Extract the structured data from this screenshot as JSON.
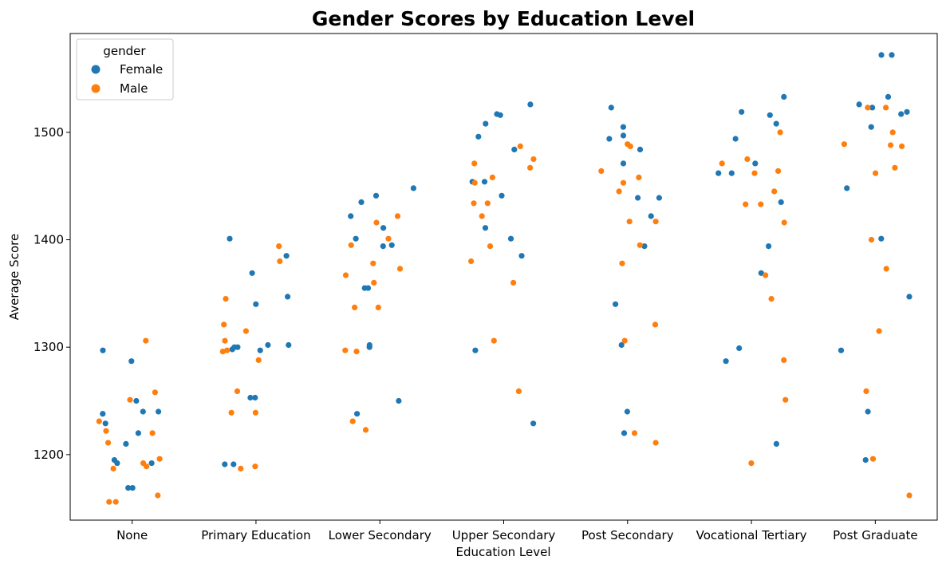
{
  "chart_data": {
    "type": "scatter",
    "title": "Gender Scores by Education Level",
    "xlabel": "Education Level",
    "ylabel": "Average Score",
    "categories": [
      "None",
      "Primary Education",
      "Lower Secondary",
      "Upper Secondary",
      "Post Secondary",
      "Vocational Tertiary",
      "Post Graduate"
    ],
    "ylim": [
      1139,
      1592
    ],
    "yticks": [
      1200,
      1300,
      1400,
      1500
    ],
    "grid": false,
    "legend": {
      "title": "gender",
      "placement": "top-left",
      "entries": [
        "Female",
        "Male"
      ]
    },
    "series": [
      {
        "name": "Female",
        "color": "#1f77b4",
        "values": [
          [
            1287,
            1250,
            1229,
            1195,
            1169,
            1169,
            1297,
            1240,
            1220,
            1210,
            1192,
            1192,
            1240,
            1238
          ],
          [
            1340,
            1300,
            1302,
            1298,
            1297,
            1253,
            1191,
            1191,
            1385,
            1302,
            1401,
            1369,
            1347,
            1300,
            1253
          ],
          [
            1411,
            1395,
            1355,
            1238,
            1448,
            1441,
            1435,
            1394,
            1355,
            1401,
            1250,
            1302,
            1300,
            1422
          ],
          [
            1229,
            1508,
            1526,
            1441,
            1411,
            1401,
            1517,
            1385,
            1484,
            1496,
            1454,
            1516,
            1297,
            1454
          ],
          [
            1302,
            1484,
            1439,
            1439,
            1340,
            1505,
            1240,
            1471,
            1422,
            1220,
            1497,
            1523,
            1494,
            1394
          ],
          [
            1287,
            1494,
            1516,
            1508,
            1533,
            1435,
            1210,
            1394,
            1369,
            1471,
            1462,
            1299,
            1519,
            1462
          ],
          [
            1240,
            1533,
            1572,
            1526,
            1519,
            1297,
            1195,
            1401,
            1505,
            1448,
            1347,
            1523,
            1517,
            1572
          ]
        ]
      },
      {
        "name": "Male",
        "color": "#ff7f0e",
        "values": [
          [
            1251,
            1222,
            1220,
            1196,
            1156,
            1231,
            1211,
            1189,
            1306,
            1192,
            1162,
            1187,
            1258,
            1156
          ],
          [
            1321,
            1297,
            1296,
            1288,
            1394,
            1380,
            1239,
            1239,
            1306,
            1187,
            1189,
            1345,
            1315,
            1259
          ],
          [
            1223,
            1373,
            1337,
            1296,
            1297,
            1401,
            1395,
            1378,
            1231,
            1337,
            1360,
            1367,
            1422,
            1416
          ],
          [
            1487,
            1458,
            1475,
            1259,
            1360,
            1434,
            1306,
            1471,
            1467,
            1453,
            1434,
            1422,
            1394,
            1380
          ],
          [
            1220,
            1453,
            1445,
            1487,
            1417,
            1417,
            1378,
            1464,
            1321,
            1458,
            1489,
            1211,
            1395,
            1306
          ],
          [
            1288,
            1464,
            1433,
            1192,
            1367,
            1345,
            1500,
            1462,
            1251,
            1433,
            1445,
            1475,
            1471,
            1416
          ],
          [
            1315,
            1523,
            1523,
            1500,
            1467,
            1462,
            1400,
            1487,
            1488,
            1489,
            1259,
            1196,
            1162,
            1373
          ]
        ]
      }
    ]
  }
}
